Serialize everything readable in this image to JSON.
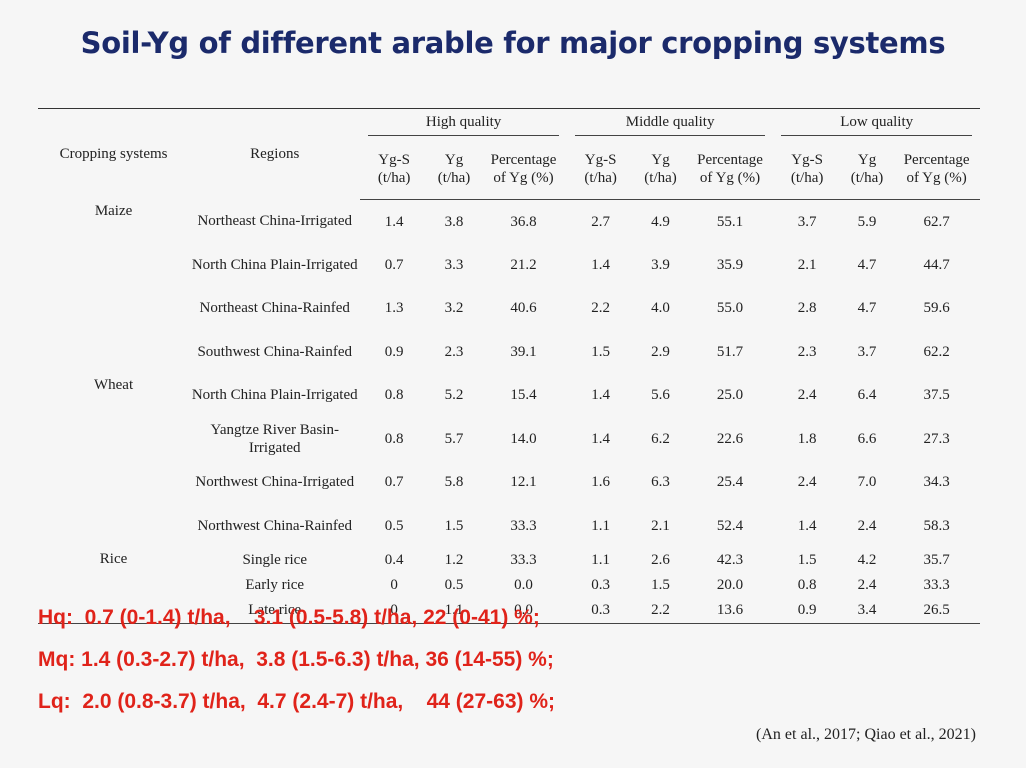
{
  "title": "Soil-Yg of different arable for major cropping systems",
  "table": {
    "col_cropping": "Cropping systems",
    "col_regions": "Regions",
    "groups": [
      "High quality",
      "Middle quality",
      "Low quality"
    ],
    "sub": [
      "Yg-S (t/ha)",
      "Yg (t/ha)",
      "Percentage of Yg (%)"
    ],
    "rows": [
      {
        "crop": "Maize",
        "region": "Northeast China-Irrigated",
        "v": [
          "1.4",
          "3.8",
          "36.8",
          "2.7",
          "4.9",
          "55.1",
          "3.7",
          "5.9",
          "62.7"
        ]
      },
      {
        "crop": "",
        "region": "North China Plain-Irrigated",
        "v": [
          "0.7",
          "3.3",
          "21.2",
          "1.4",
          "3.9",
          "35.9",
          "2.1",
          "4.7",
          "44.7"
        ]
      },
      {
        "crop": "",
        "region": "Northeast China-Rainfed",
        "v": [
          "1.3",
          "3.2",
          "40.6",
          "2.2",
          "4.0",
          "55.0",
          "2.8",
          "4.7",
          "59.6"
        ]
      },
      {
        "crop": "",
        "region": "Southwest China-Rainfed",
        "v": [
          "0.9",
          "2.3",
          "39.1",
          "1.5",
          "2.9",
          "51.7",
          "2.3",
          "3.7",
          "62.2"
        ]
      },
      {
        "crop": "Wheat",
        "region": "North China Plain-Irrigated",
        "v": [
          "0.8",
          "5.2",
          "15.4",
          "1.4",
          "5.6",
          "25.0",
          "2.4",
          "6.4",
          "37.5"
        ]
      },
      {
        "crop": "",
        "region": "Yangtze River Basin-Irrigated",
        "v": [
          "0.8",
          "5.7",
          "14.0",
          "1.4",
          "6.2",
          "22.6",
          "1.8",
          "6.6",
          "27.3"
        ]
      },
      {
        "crop": "",
        "region": "Northwest China-Irrigated",
        "v": [
          "0.7",
          "5.8",
          "12.1",
          "1.6",
          "6.3",
          "25.4",
          "2.4",
          "7.0",
          "34.3"
        ]
      },
      {
        "crop": "",
        "region": "Northwest China-Rainfed",
        "v": [
          "0.5",
          "1.5",
          "33.3",
          "1.1",
          "2.1",
          "52.4",
          "1.4",
          "2.4",
          "58.3"
        ]
      },
      {
        "crop": "Rice",
        "region": "Single rice",
        "v": [
          "0.4",
          "1.2",
          "33.3",
          "1.1",
          "2.6",
          "42.3",
          "1.5",
          "4.2",
          "35.7"
        ]
      },
      {
        "crop": "",
        "region": "Early rice",
        "v": [
          "0",
          "0.5",
          "0.0",
          "0.3",
          "1.5",
          "20.0",
          "0.8",
          "2.4",
          "33.3"
        ]
      },
      {
        "crop": "",
        "region": "Late rice",
        "v": [
          "0",
          "1.1",
          "0.0",
          "0.3",
          "2.2",
          "13.6",
          "0.9",
          "3.4",
          "26.5"
        ]
      }
    ]
  },
  "notes": {
    "hq": "Hq:  0.7 (0-1.4) t/ha,    3.1 (0.5-5.8) t/ha, 22 (0-41) %;",
    "mq": "Mq: 1.4 (0.3-2.7) t/ha,  3.8 (1.5-6.3) t/ha, 36 (14-55) %;",
    "lq": "Lq:  2.0 (0.8-3.7) t/ha,  4.7 (2.4-7) t/ha,    44 (27-63) %;"
  },
  "citation": "(An et al., 2017; Qiao et al., 2021)"
}
